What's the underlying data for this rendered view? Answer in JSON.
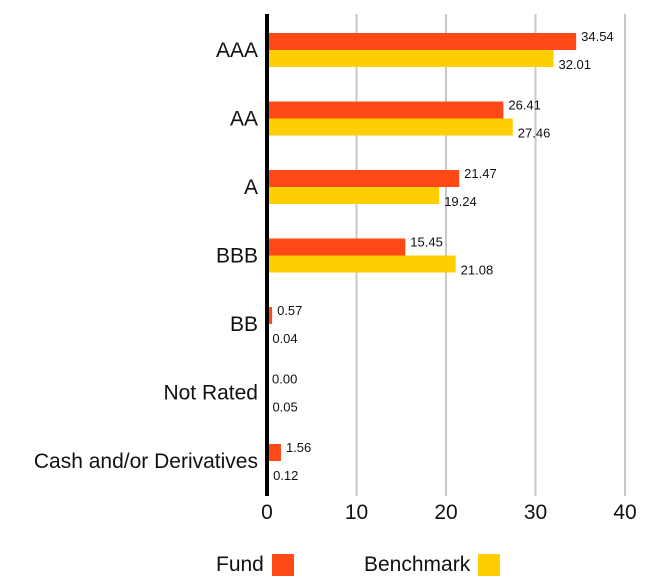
{
  "chart_data": {
    "type": "bar",
    "orientation": "horizontal",
    "categories": [
      "AAA",
      "AA",
      "A",
      "BBB",
      "BB",
      "Not Rated",
      "Cash and/or Derivatives"
    ],
    "series": [
      {
        "name": "Fund",
        "color": "#FF4A17",
        "values": [
          34.54,
          26.41,
          21.47,
          15.45,
          0.57,
          0.0,
          1.56
        ],
        "labels": [
          "34.54",
          "26.41",
          "21.47",
          "15.45",
          "0.57",
          "0.00",
          "1.56"
        ]
      },
      {
        "name": "Benchmark",
        "color": "#FFCE00",
        "values": [
          32.01,
          27.46,
          19.24,
          21.08,
          0.04,
          0.05,
          0.12
        ],
        "labels": [
          "32.01",
          "27.46",
          "19.24",
          "21.08",
          "0.04",
          "0.05",
          "0.12"
        ]
      }
    ],
    "x_ticks": [
      "0",
      "10",
      "20",
      "30",
      "40"
    ],
    "xlim": [
      0,
      40
    ],
    "grid": true,
    "legend_position": "bottom",
    "title": "",
    "xlabel": "",
    "ylabel": ""
  }
}
